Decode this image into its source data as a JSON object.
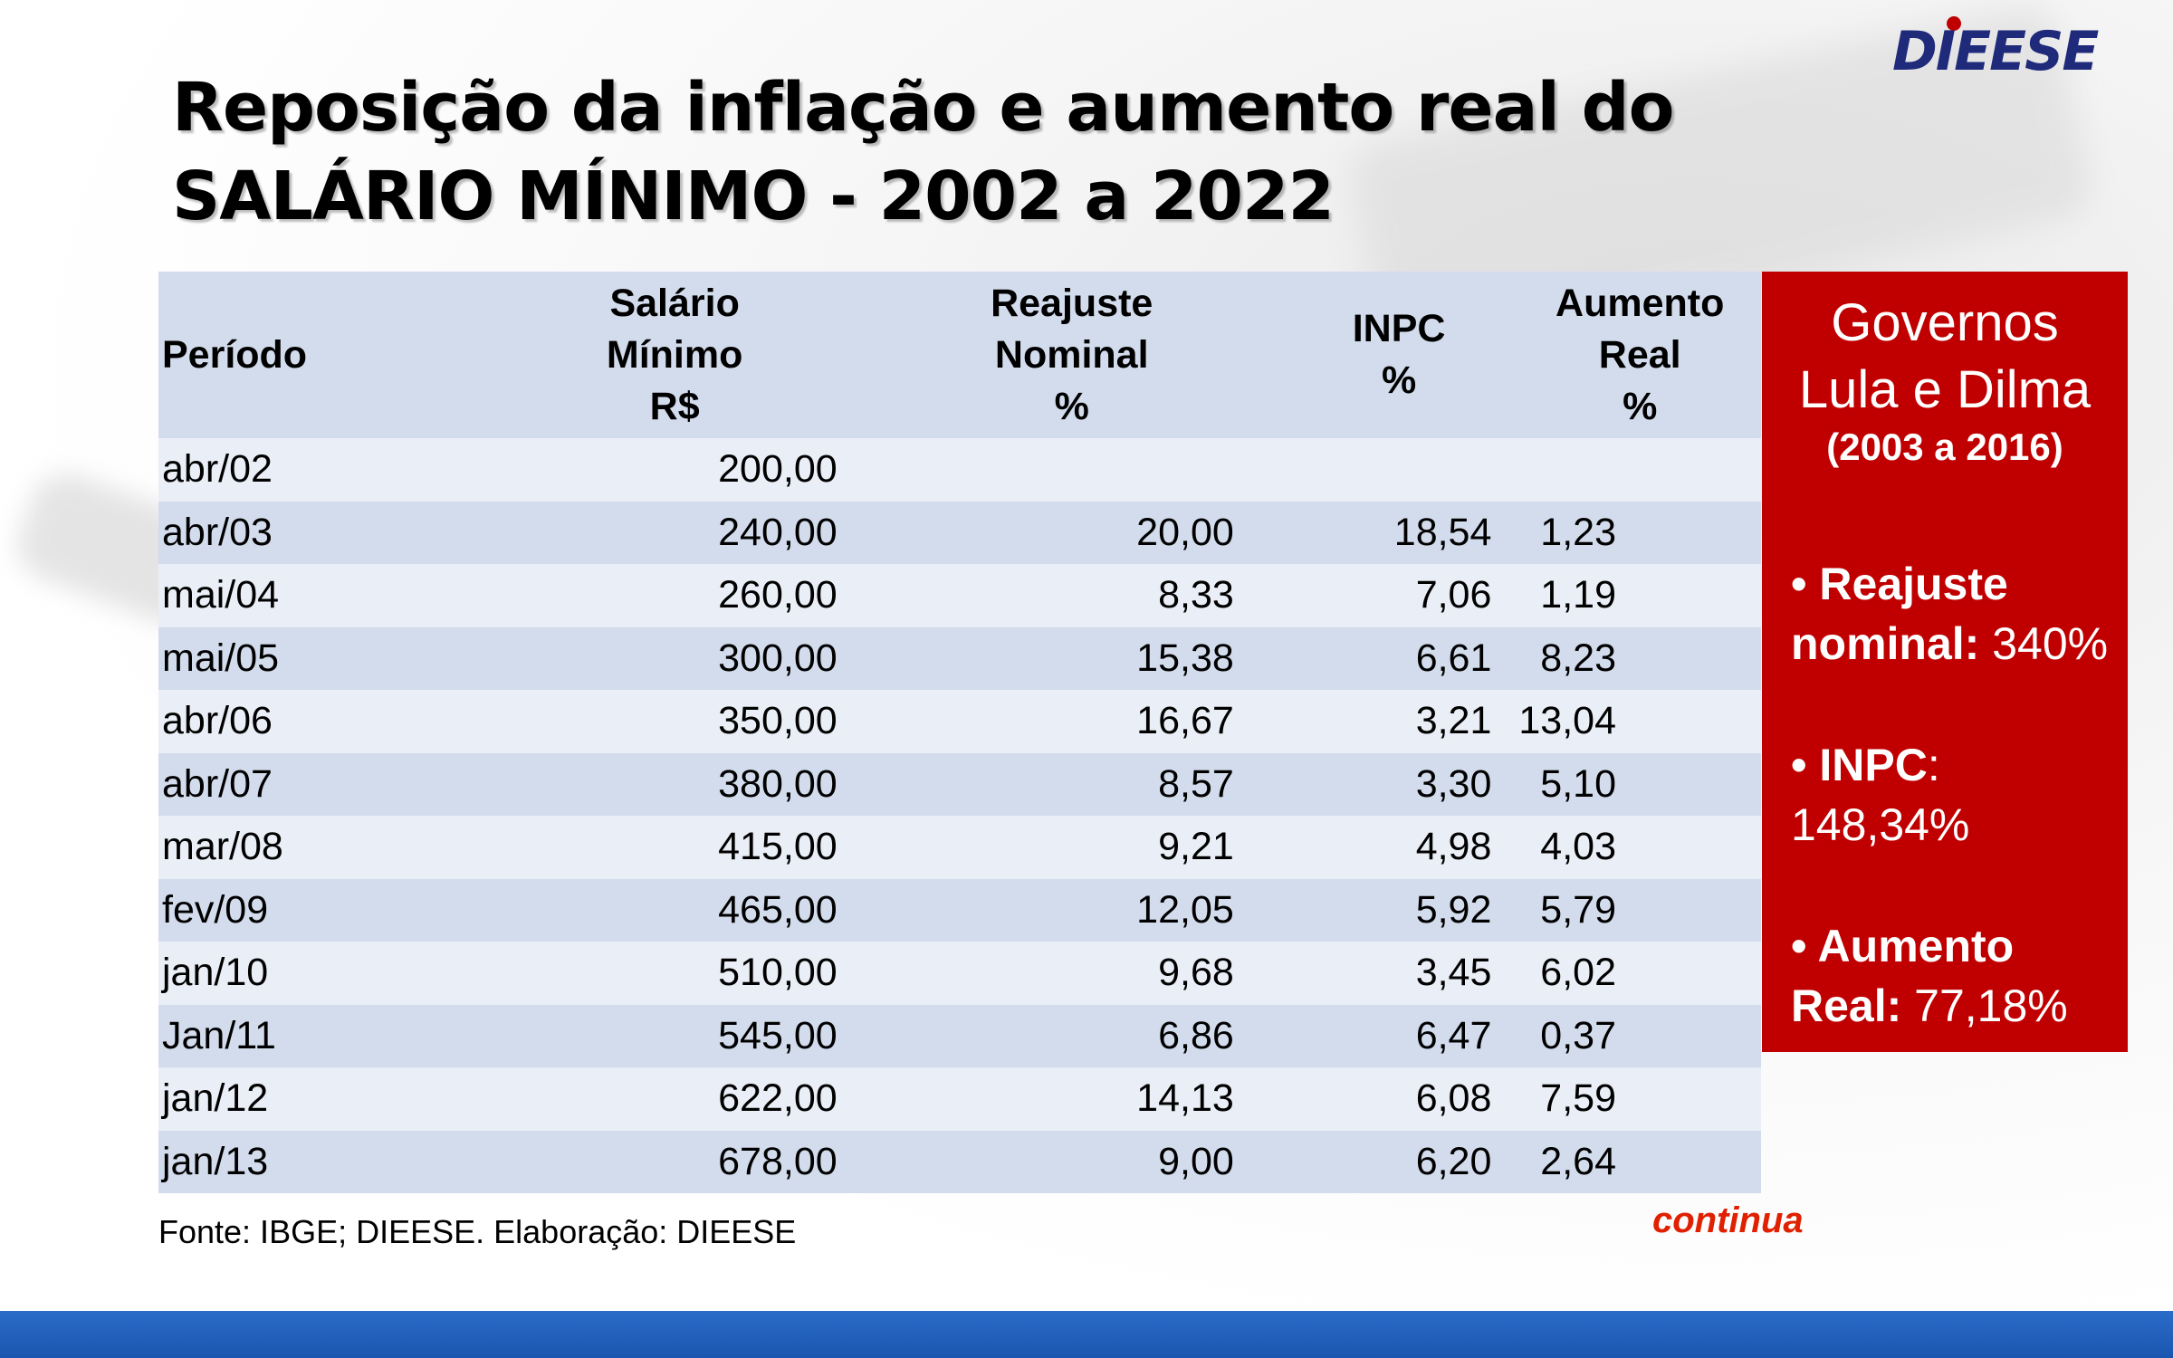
{
  "title": {
    "line1": "Reposição da inflação e aumento real do",
    "line2": "SALÁRIO MÍNIMO - 2002 a 2022"
  },
  "logo": {
    "text": "DIEESE"
  },
  "table": {
    "headers": {
      "periodo": "Período",
      "salario_l1": "Salário",
      "salario_l2": "Mínimo",
      "salario_l3": "R$",
      "reajuste_l1": "Reajuste",
      "reajuste_l2": "Nominal",
      "reajuste_l3": "%",
      "inpc_l1": "INPC",
      "inpc_l2": "%",
      "aumento_l1": "Aumento",
      "aumento_l2": "Real",
      "aumento_l3": "%"
    },
    "rows": [
      {
        "periodo": "abr/02",
        "salario": "200,00",
        "reajuste": "",
        "inpc": "",
        "aumento": ""
      },
      {
        "periodo": "abr/03",
        "salario": "240,00",
        "reajuste": "20,00",
        "inpc": "18,54",
        "aumento": "1,23"
      },
      {
        "periodo": "mai/04",
        "salario": "260,00",
        "reajuste": "8,33",
        "inpc": "7,06",
        "aumento": "1,19"
      },
      {
        "periodo": "mai/05",
        "salario": "300,00",
        "reajuste": "15,38",
        "inpc": "6,61",
        "aumento": "8,23"
      },
      {
        "periodo": "abr/06",
        "salario": "350,00",
        "reajuste": "16,67",
        "inpc": "3,21",
        "aumento": "13,04"
      },
      {
        "periodo": "abr/07",
        "salario": "380,00",
        "reajuste": "8,57",
        "inpc": "3,30",
        "aumento": "5,10"
      },
      {
        "periodo": "mar/08",
        "salario": "415,00",
        "reajuste": "9,21",
        "inpc": "4,98",
        "aumento": "4,03"
      },
      {
        "periodo": "fev/09",
        "salario": "465,00",
        "reajuste": "12,05",
        "inpc": "5,92",
        "aumento": "5,79"
      },
      {
        "periodo": "jan/10",
        "salario": "510,00",
        "reajuste": "9,68",
        "inpc": "3,45",
        "aumento": "6,02"
      },
      {
        "periodo": "Jan/11",
        "salario": "545,00",
        "reajuste": "6,86",
        "inpc": "6,47",
        "aumento": "0,37"
      },
      {
        "periodo": "jan/12",
        "salario": "622,00",
        "reajuste": "14,13",
        "inpc": "6,08",
        "aumento": "7,59"
      },
      {
        "periodo": "jan/13",
        "salario": "678,00",
        "reajuste": "9,00",
        "inpc": "6,20",
        "aumento": "2,64"
      }
    ]
  },
  "sidebar": {
    "title_l1": "Governos",
    "title_l2": "Lula e Dilma",
    "subtitle": "(2003 a 2016)",
    "reajuste_label_l1": "• Reajuste",
    "reajuste_label_l2": "nominal:",
    "reajuste_value": "340%",
    "inpc_label": "• INPC",
    "inpc_value": "148,34%",
    "aumento_label_l1": "• Aumento",
    "aumento_label_l2": "Real:",
    "aumento_value": "77,18%"
  },
  "footer": {
    "source": "Fonte: IBGE; DIEESE. Elaboração: DIEESE",
    "continue_label": "continua"
  },
  "colors": {
    "accent_red": "#c00000",
    "header_blue": "#d3dcec",
    "logo_blue": "#1f2a7a",
    "bar_blue": "#1a56b0"
  }
}
